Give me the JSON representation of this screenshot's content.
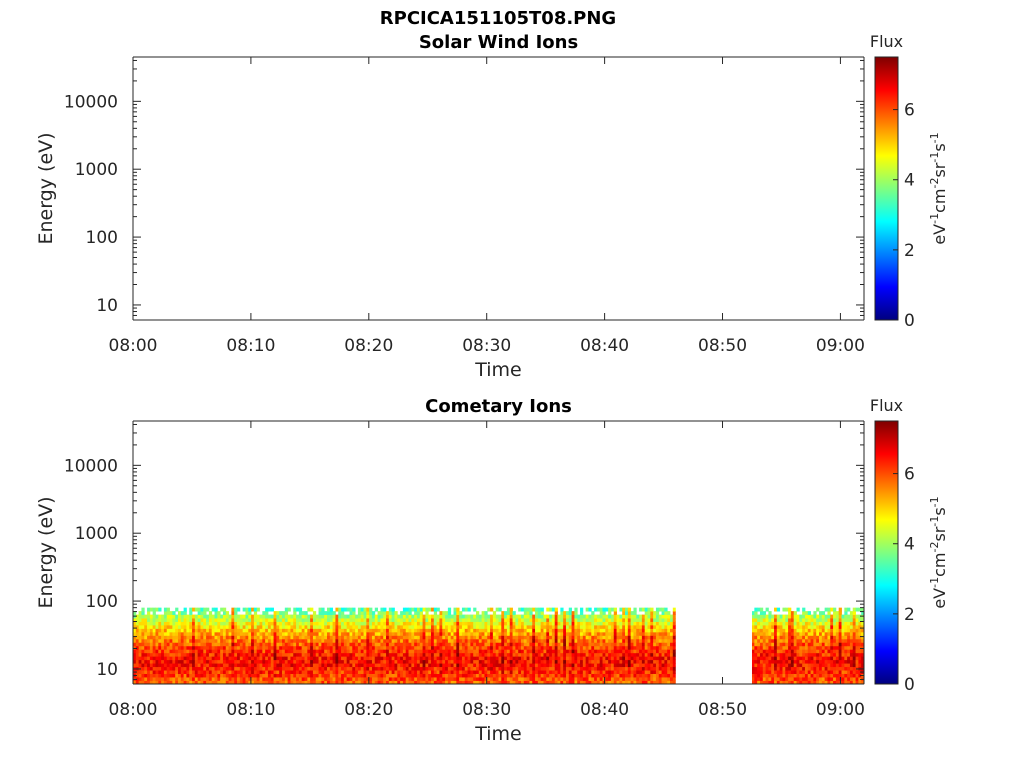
{
  "figure_title": "RPCICA151105T08.PNG",
  "colors": {
    "axis": "#262626",
    "background": "#ffffff"
  },
  "chart_data": [
    {
      "type": "heatmap",
      "title": "Solar Wind Ions",
      "xlabel": "Time",
      "ylabel": "Energy (eV)",
      "x_ticks": [
        "08:00",
        "08:10",
        "08:20",
        "08:30",
        "08:40",
        "08:50",
        "09:00"
      ],
      "x_range_minutes": [
        0,
        62
      ],
      "y_scale": "log",
      "y_ticks": [
        "10",
        "100",
        "1000",
        "10000"
      ],
      "y_range": [
        6,
        45000
      ],
      "colorbar": {
        "title": "Flux",
        "unit": "eV-1cm-2sr-1s-1",
        "ticks": [
          "0",
          "2",
          "4",
          "6"
        ],
        "range": [
          0,
          7.5
        ],
        "colormap": "jet"
      },
      "data": []
    },
    {
      "type": "heatmap",
      "title": "Cometary Ions",
      "xlabel": "Time",
      "ylabel": "Energy (eV)",
      "x_ticks": [
        "08:00",
        "08:10",
        "08:20",
        "08:30",
        "08:40",
        "08:50",
        "09:00"
      ],
      "x_range_minutes": [
        0,
        62
      ],
      "y_scale": "log",
      "y_ticks": [
        "10",
        "100",
        "1000",
        "10000"
      ],
      "y_range": [
        6,
        45000
      ],
      "colorbar": {
        "title": "Flux",
        "unit": "eV-1cm-2sr-1s-1",
        "ticks": [
          "0",
          "2",
          "4",
          "6"
        ],
        "range": [
          0,
          7.5
        ],
        "colormap": "jet"
      },
      "data_segments": [
        {
          "start_min": 0,
          "end_min": 46,
          "energy_min_eV": 6,
          "energy_max_eV": 80,
          "peak_energy_eV": 12,
          "peak_flux": 6.5
        },
        {
          "start_min": 52.5,
          "end_min": 62,
          "energy_min_eV": 6,
          "energy_max_eV": 80,
          "peak_energy_eV": 12,
          "peak_flux": 6.5
        }
      ],
      "data_gap_minutes": [
        46,
        52.5
      ]
    }
  ]
}
